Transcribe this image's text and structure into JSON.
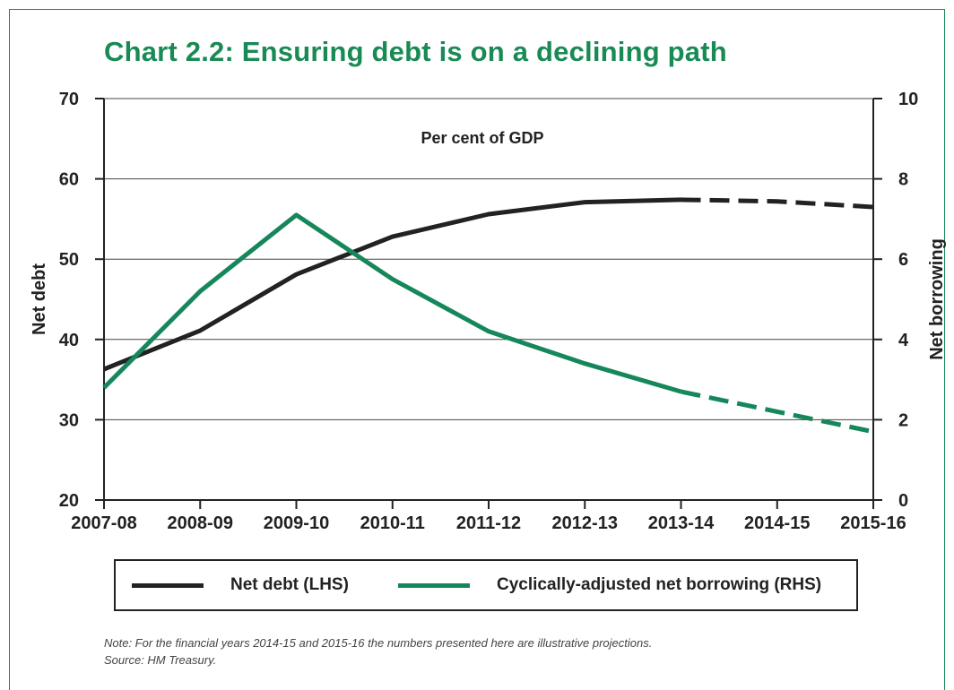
{
  "colors": {
    "frame": "#1a8a55",
    "title": "#1a8a55",
    "net_debt": "#222222",
    "borrowing": "#16875a",
    "grid": "#444444"
  },
  "chart_data": {
    "type": "line",
    "title": "Chart 2.2: Ensuring debt is on a declining path",
    "annotation": "Per cent of GDP",
    "categories": [
      "2007-08",
      "2008-09",
      "2009-10",
      "2010-11",
      "2011-12",
      "2012-13",
      "2013-14",
      "2014-15",
      "2015-16"
    ],
    "ylabel_left": "Net debt",
    "ylabel_right": "Net borrowing",
    "ylim_left": [
      20,
      70
    ],
    "ylim_right": [
      0,
      10
    ],
    "yticks_left": [
      "20",
      "30",
      "40",
      "50",
      "60",
      "70"
    ],
    "yticks_right": [
      "0",
      "2",
      "4",
      "6",
      "8",
      "10"
    ],
    "grid": true,
    "projection_from": "2013-14",
    "series": [
      {
        "name": "Net debt (LHS)",
        "axis": "left",
        "color": "#222222",
        "values": [
          36.3,
          41.1,
          48.1,
          52.8,
          55.6,
          57.1,
          57.4,
          57.2,
          56.5
        ]
      },
      {
        "name": "Cyclically-adjusted net borrowing (RHS)",
        "axis": "right",
        "color": "#16875a",
        "values": [
          2.8,
          5.2,
          7.1,
          5.5,
          4.2,
          3.4,
          2.7,
          2.2,
          1.7
        ]
      }
    ],
    "legend_position": "bottom"
  },
  "note": {
    "line1": "Note: For the financial years 2014-15 and 2015-16 the numbers presented here are illustrative projections.",
    "line2": "Source: HM Treasury."
  }
}
